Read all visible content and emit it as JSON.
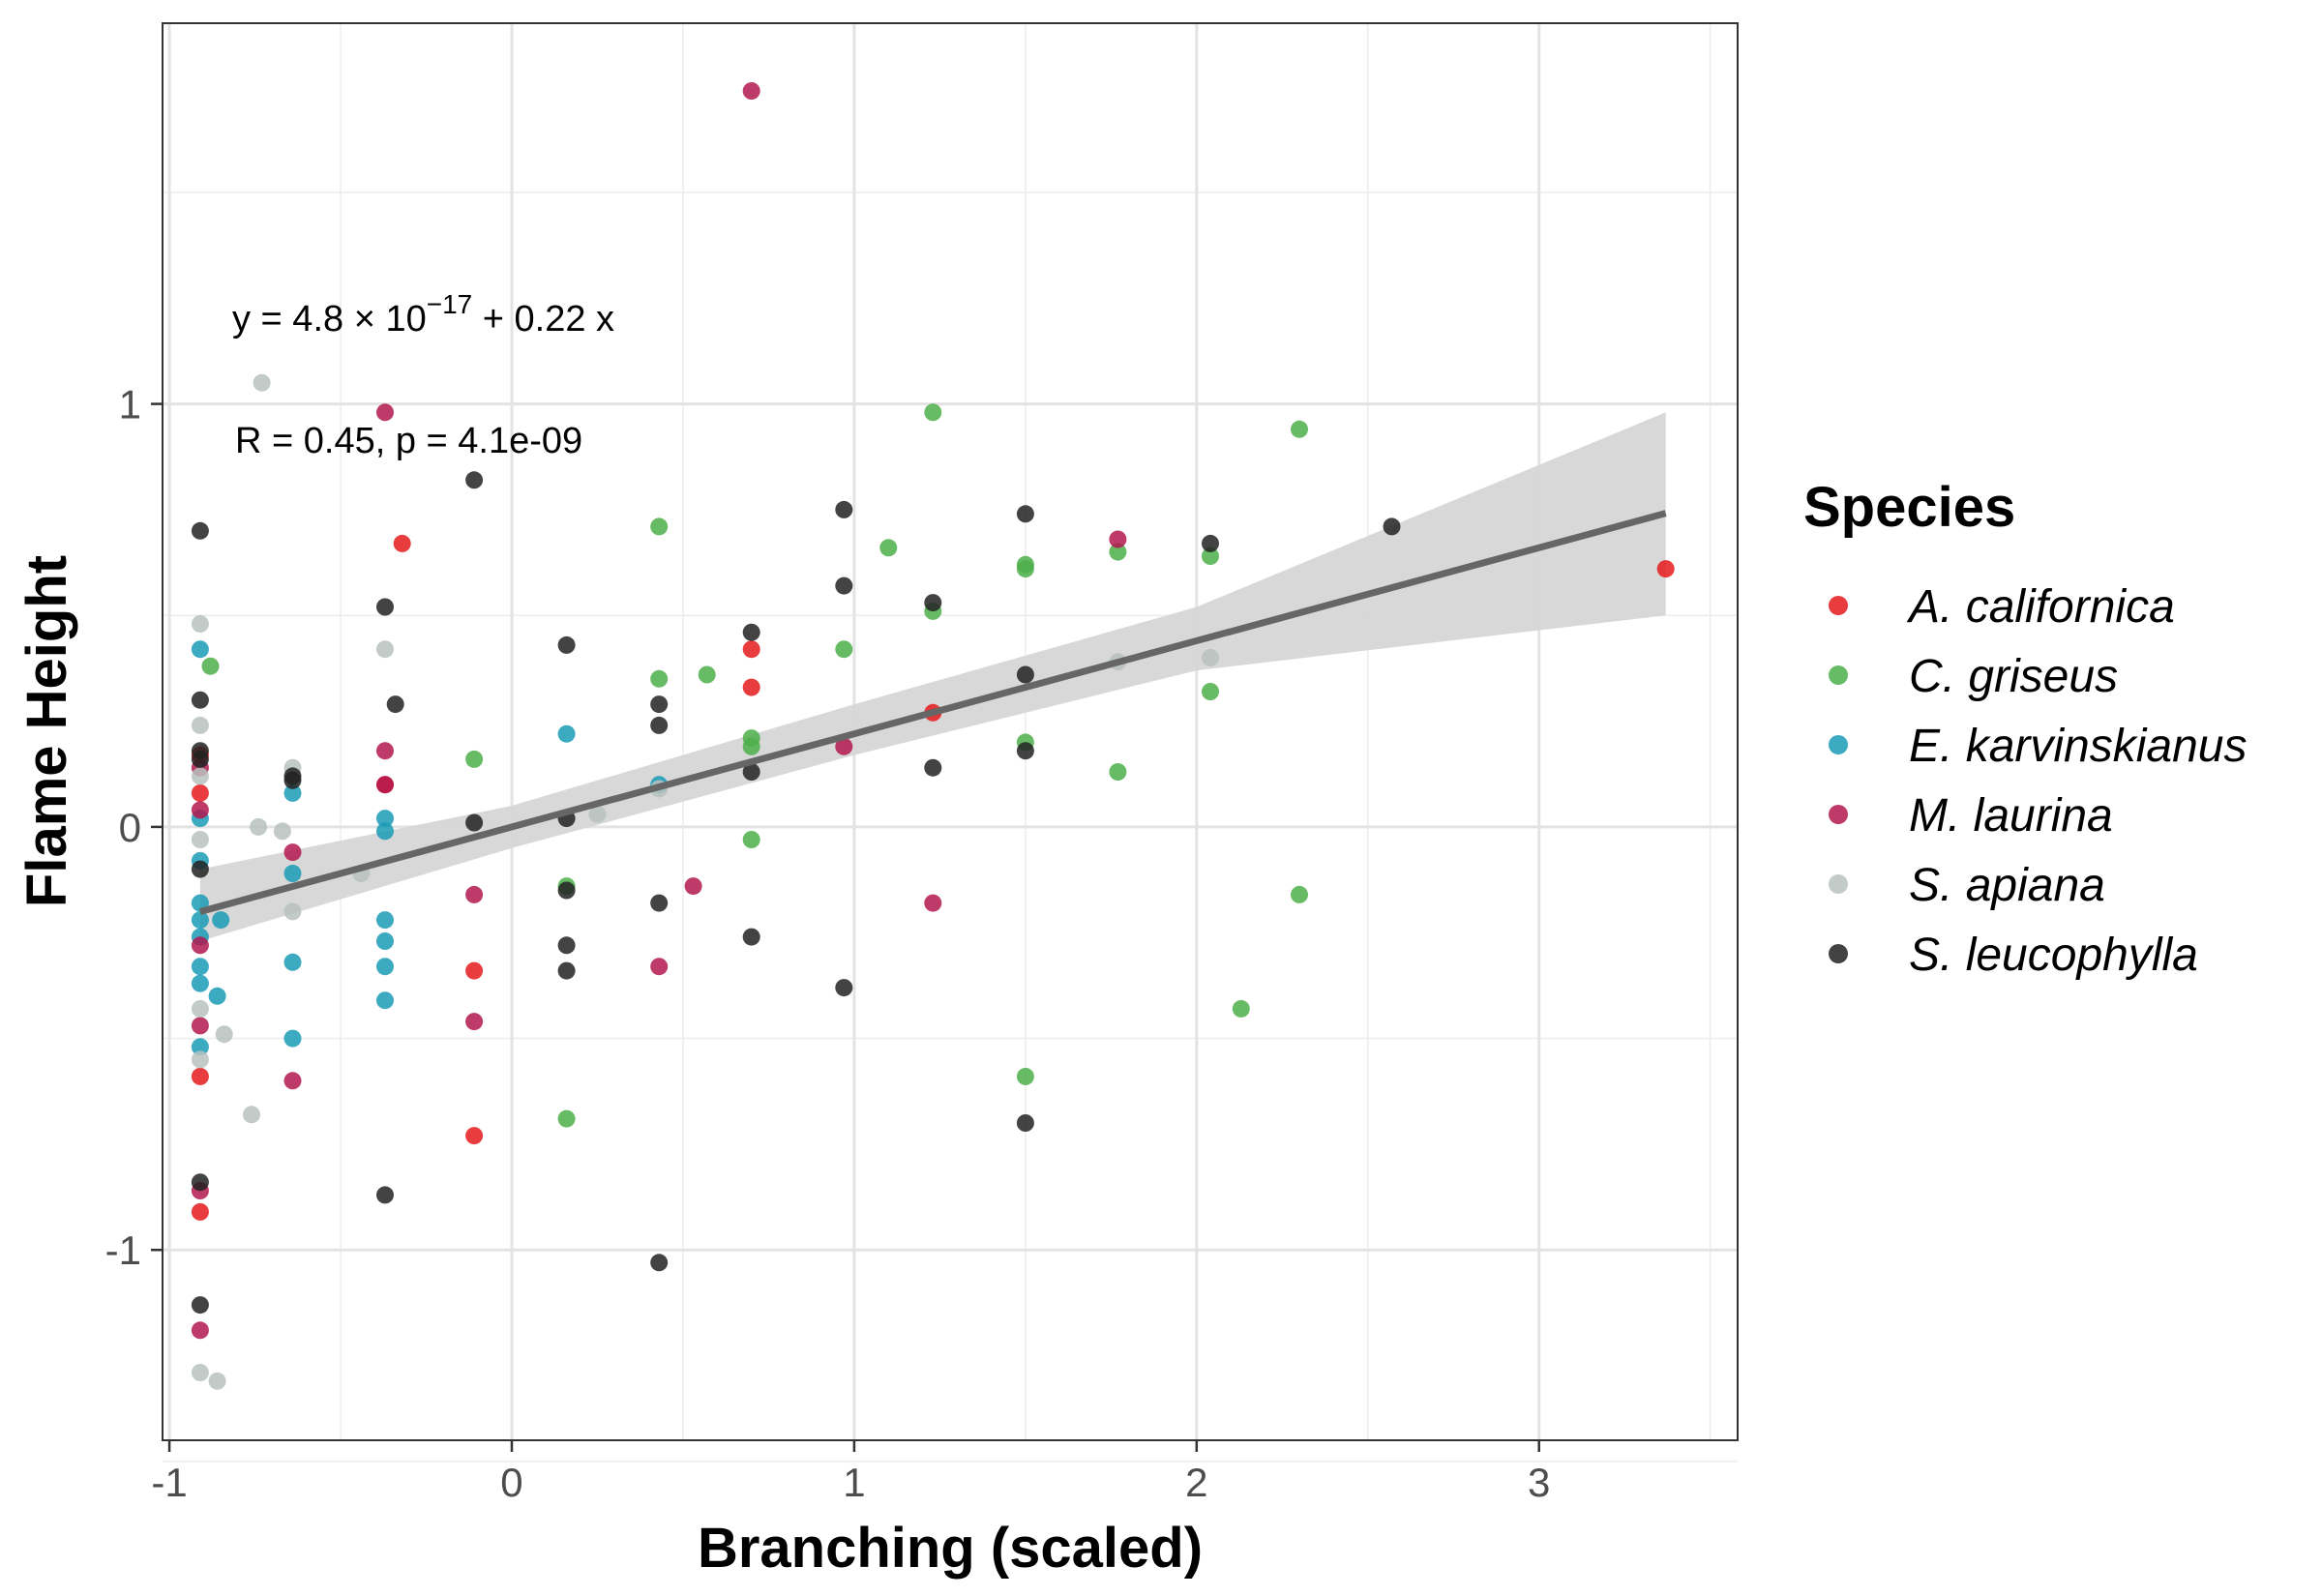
{
  "chart_data": {
    "type": "scatter",
    "xlabel": "Branching (scaled)",
    "ylabel": "Flame Height",
    "xlim": [
      -1.02,
      3.58
    ],
    "ylim": [
      -1.45,
      1.9
    ],
    "x_ticks": [
      -1,
      0,
      1,
      2,
      3
    ],
    "y_ticks": [
      -1,
      0,
      1
    ],
    "x_tick_labels": [
      "-1",
      "0",
      "1",
      "2",
      "3"
    ],
    "y_tick_labels": [
      "-1",
      "0",
      "1"
    ],
    "grid": true,
    "legend_title": "Species",
    "legend_position": "right",
    "annotations": {
      "equation_prefix": "y = 4.8 × 10",
      "equation_exponent": "−17",
      "equation_suffix": " + 0.22 x",
      "r_text": "R = 0.45, p = 4.1e-09"
    },
    "regression": {
      "intercept": 0.0,
      "slope": 0.22,
      "x_range": [
        -0.91,
        3.37
      ],
      "ci": [
        {
          "x": -0.91,
          "lo": -0.27,
          "hi": -0.1
        },
        {
          "x": 0.0,
          "lo": -0.05,
          "hi": 0.05
        },
        {
          "x": 1.0,
          "lo": 0.17,
          "hi": 0.29
        },
        {
          "x": 2.0,
          "lo": 0.37,
          "hi": 0.52
        },
        {
          "x": 3.37,
          "lo": 0.5,
          "hi": 0.98
        }
      ],
      "line_color": "#666666",
      "band_color": "#d6d6d6"
    },
    "series": [
      {
        "name": "A. californica",
        "color": "#e41a1c",
        "points": [
          [
            -0.91,
            0.17
          ],
          [
            -0.91,
            0.08
          ],
          [
            -0.91,
            -0.59
          ],
          [
            -0.91,
            -0.91
          ],
          [
            -0.37,
            0.1
          ],
          [
            -0.32,
            0.67
          ],
          [
            -0.11,
            -0.34
          ],
          [
            -0.11,
            -0.73
          ],
          [
            0.7,
            0.42
          ],
          [
            0.7,
            0.33
          ],
          [
            1.23,
            0.27
          ],
          [
            3.37,
            0.61
          ]
        ]
      },
      {
        "name": "C. griseus",
        "color": "#4daf4a",
        "points": [
          [
            -0.88,
            0.38
          ],
          [
            -0.11,
            0.16
          ],
          [
            0.16,
            -0.14
          ],
          [
            0.16,
            -0.69
          ],
          [
            0.43,
            0.71
          ],
          [
            0.43,
            0.35
          ],
          [
            0.57,
            0.36
          ],
          [
            0.7,
            0.21
          ],
          [
            0.7,
            0.19
          ],
          [
            0.7,
            -0.03
          ],
          [
            0.97,
            0.42
          ],
          [
            1.1,
            0.66
          ],
          [
            1.23,
            0.98
          ],
          [
            1.23,
            0.51
          ],
          [
            1.5,
            0.62
          ],
          [
            1.5,
            0.61
          ],
          [
            1.5,
            0.2
          ],
          [
            1.5,
            -0.59
          ],
          [
            1.77,
            0.65
          ],
          [
            1.77,
            0.13
          ],
          [
            2.04,
            0.64
          ],
          [
            2.04,
            0.32
          ],
          [
            2.13,
            -0.43
          ],
          [
            2.3,
            0.94
          ],
          [
            2.3,
            -0.16
          ]
        ]
      },
      {
        "name": "E. karvinskianus",
        "color": "#1a9bb5",
        "points": [
          [
            -0.91,
            0.42
          ],
          [
            -0.91,
            0.02
          ],
          [
            -0.91,
            -0.08
          ],
          [
            -0.91,
            -0.18
          ],
          [
            -0.91,
            -0.22
          ],
          [
            -0.91,
            -0.26
          ],
          [
            -0.91,
            -0.33
          ],
          [
            -0.91,
            -0.37
          ],
          [
            -0.91,
            -0.52
          ],
          [
            -0.85,
            -0.22
          ],
          [
            -0.86,
            -0.4
          ],
          [
            -0.64,
            0.08
          ],
          [
            -0.64,
            -0.11
          ],
          [
            -0.64,
            -0.32
          ],
          [
            -0.64,
            -0.5
          ],
          [
            -0.37,
            0.02
          ],
          [
            -0.37,
            -0.01
          ],
          [
            -0.37,
            -0.22
          ],
          [
            -0.37,
            -0.27
          ],
          [
            -0.37,
            -0.33
          ],
          [
            -0.37,
            -0.41
          ],
          [
            0.16,
            0.22
          ],
          [
            0.43,
            0.1
          ]
        ]
      },
      {
        "name": "M. laurina",
        "color": "#b2184f",
        "points": [
          [
            -0.91,
            0.14
          ],
          [
            -0.91,
            0.04
          ],
          [
            -0.91,
            -0.28
          ],
          [
            -0.91,
            -0.47
          ],
          [
            -0.91,
            -0.86
          ],
          [
            -0.91,
            -1.19
          ],
          [
            -0.64,
            -0.06
          ],
          [
            -0.64,
            -0.6
          ],
          [
            -0.37,
            0.98
          ],
          [
            -0.37,
            0.18
          ],
          [
            -0.37,
            0.1
          ],
          [
            -0.11,
            -0.16
          ],
          [
            -0.11,
            -0.46
          ],
          [
            0.43,
            -0.33
          ],
          [
            0.53,
            -0.14
          ],
          [
            0.7,
            1.74
          ],
          [
            0.97,
            0.19
          ],
          [
            1.23,
            -0.18
          ],
          [
            1.77,
            0.68
          ]
        ]
      },
      {
        "name": "S. apiana",
        "color": "#b8c2be",
        "points": [
          [
            -0.91,
            0.48
          ],
          [
            -0.91,
            0.24
          ],
          [
            -0.91,
            0.12
          ],
          [
            -0.91,
            -0.03
          ],
          [
            -0.91,
            -0.43
          ],
          [
            -0.91,
            -0.55
          ],
          [
            -0.91,
            -1.29
          ],
          [
            -0.86,
            -1.31
          ],
          [
            -0.84,
            -0.49
          ],
          [
            -0.76,
            -0.68
          ],
          [
            -0.74,
            0.0
          ],
          [
            -0.73,
            1.05
          ],
          [
            -0.67,
            -0.01
          ],
          [
            -0.64,
            0.14
          ],
          [
            -0.64,
            -0.2
          ],
          [
            -0.44,
            -0.11
          ],
          [
            -0.37,
            0.42
          ],
          [
            0.25,
            0.03
          ],
          [
            0.43,
            0.09
          ],
          [
            2.04,
            0.4
          ],
          [
            1.77,
            0.39
          ]
        ]
      },
      {
        "name": "S. leucophylla",
        "color": "#222222",
        "points": [
          [
            -0.91,
            0.7
          ],
          [
            -0.91,
            0.3
          ],
          [
            -0.91,
            0.18
          ],
          [
            -0.91,
            0.16
          ],
          [
            -0.91,
            -0.1
          ],
          [
            -0.91,
            -0.84
          ],
          [
            -0.91,
            -1.13
          ],
          [
            -0.64,
            0.12
          ],
          [
            -0.64,
            0.11
          ],
          [
            -0.37,
            0.52
          ],
          [
            -0.37,
            -0.87
          ],
          [
            -0.34,
            0.29
          ],
          [
            -0.11,
            0.82
          ],
          [
            -0.11,
            0.01
          ],
          [
            0.16,
            0.43
          ],
          [
            0.16,
            0.02
          ],
          [
            0.16,
            -0.15
          ],
          [
            0.16,
            -0.28
          ],
          [
            0.16,
            -0.34
          ],
          [
            0.43,
            0.29
          ],
          [
            0.43,
            0.24
          ],
          [
            0.43,
            -0.18
          ],
          [
            0.43,
            -1.03
          ],
          [
            0.7,
            0.46
          ],
          [
            0.7,
            0.13
          ],
          [
            0.7,
            -0.26
          ],
          [
            0.97,
            0.75
          ],
          [
            0.97,
            0.57
          ],
          [
            0.97,
            -0.38
          ],
          [
            1.23,
            0.53
          ],
          [
            1.23,
            0.14
          ],
          [
            1.5,
            0.74
          ],
          [
            1.5,
            0.36
          ],
          [
            1.5,
            0.18
          ],
          [
            1.5,
            -0.7
          ],
          [
            2.04,
            0.67
          ],
          [
            2.57,
            0.71
          ]
        ]
      }
    ]
  }
}
